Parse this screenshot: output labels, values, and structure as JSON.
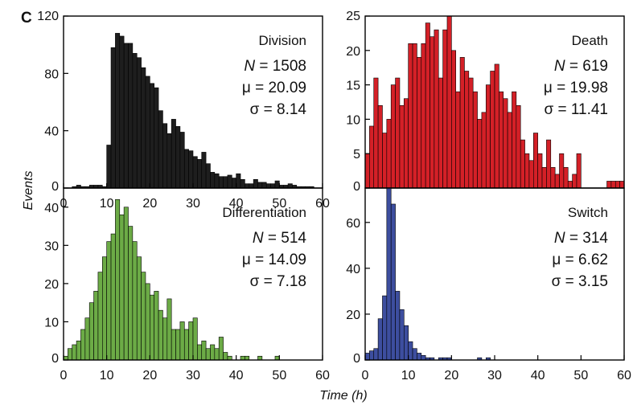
{
  "figure": {
    "panel_label": "C",
    "ylabel": "Events",
    "xlabel": "Time (h)"
  },
  "chart_data": [
    {
      "type": "bar",
      "title": "Division",
      "stats": {
        "n_symbol": "N",
        "n": "= 1508",
        "mu": "μ = 20.09",
        "sigma": "σ = 8.14"
      },
      "bar_color": "#1e1e1e",
      "xlim": [
        0,
        60
      ],
      "ylim": [
        0,
        120
      ],
      "xticks": [
        "0",
        "10",
        "20",
        "30",
        "40",
        "50",
        "60"
      ],
      "yticks": [
        "0",
        "40",
        "80",
        "120"
      ],
      "bin_width": 1,
      "bins_start": 2,
      "values": [
        1,
        2,
        1,
        1,
        2,
        2,
        2,
        1,
        30,
        98,
        108,
        106,
        101,
        101,
        94,
        91,
        84,
        78,
        73,
        70,
        54,
        45,
        38,
        48,
        43,
        39,
        27,
        26,
        22,
        20,
        25,
        17,
        11,
        10,
        8,
        8,
        9,
        7,
        10,
        6,
        3,
        3,
        6,
        4,
        4,
        3,
        3,
        5,
        2,
        2,
        3,
        2,
        1,
        1,
        1,
        1
      ]
    },
    {
      "type": "bar",
      "title": "Death",
      "stats": {
        "n_symbol": "N",
        "n": "= 619",
        "mu": "μ = 19.98",
        "sigma": "σ = 11.41"
      },
      "bar_color": "#d42027",
      "xlim": [
        0,
        60
      ],
      "ylim": [
        0,
        25
      ],
      "xticks": [],
      "yticks": [
        "0",
        "5",
        "10",
        "15",
        "20",
        "25"
      ],
      "bin_width": 1,
      "bins_start": 0,
      "values": [
        5,
        9,
        16,
        12,
        8,
        10,
        15,
        16,
        12,
        13,
        21,
        21,
        19,
        21,
        24,
        22,
        23,
        16,
        23,
        25,
        20,
        14,
        19,
        17,
        16,
        14,
        10,
        11,
        15,
        17,
        18,
        14,
        13,
        11,
        14,
        12,
        7,
        5,
        4,
        8,
        5,
        3,
        7,
        3,
        2,
        5,
        3,
        1,
        2,
        5,
        0,
        0,
        0,
        0,
        0,
        0,
        1,
        1,
        1,
        1
      ]
    },
    {
      "type": "bar",
      "title": "Differentiation",
      "stats": {
        "n_symbol": "N",
        "n": "= 514",
        "mu": "μ = 14.09",
        "sigma": "σ = 7.18"
      },
      "bar_color": "#6cab46",
      "xlim": [
        0,
        60
      ],
      "ylim": [
        0,
        45
      ],
      "xticks": [
        "0",
        "10",
        "20",
        "30",
        "40",
        "50",
        "60"
      ],
      "yticks": [
        "0",
        "10",
        "20",
        "30",
        "40"
      ],
      "bin_width": 1,
      "bins_start": 0,
      "values": [
        1,
        3,
        4,
        5,
        8,
        11,
        15,
        18,
        23,
        27,
        31,
        33,
        42,
        38,
        40,
        35,
        31,
        27,
        23,
        20,
        17,
        18,
        13,
        11,
        16,
        8,
        8,
        10,
        8,
        10,
        11,
        4,
        5,
        3,
        4,
        3,
        6,
        2,
        1,
        0,
        0,
        1,
        1,
        0,
        0,
        1,
        0,
        0,
        0,
        1
      ]
    },
    {
      "type": "bar",
      "title": "Switch",
      "stats": {
        "n_symbol": "N",
        "n": "= 314",
        "mu": "μ = 6.62",
        "sigma": "σ = 3.15"
      },
      "bar_color": "#3d4e9f",
      "xlim": [
        0,
        60
      ],
      "ylim": [
        0,
        75
      ],
      "xticks": [
        "0",
        "10",
        "20",
        "30",
        "40",
        "50",
        "60"
      ],
      "yticks": [
        "0",
        "20",
        "40",
        "60"
      ],
      "bin_width": 1,
      "bins_start": 0,
      "values": [
        3,
        4,
        5,
        18,
        28,
        75,
        68,
        30,
        22,
        15,
        8,
        5,
        3,
        2,
        1,
        1,
        0,
        1,
        1,
        1,
        0,
        0,
        0,
        0,
        0,
        0,
        1,
        0,
        1
      ]
    }
  ]
}
